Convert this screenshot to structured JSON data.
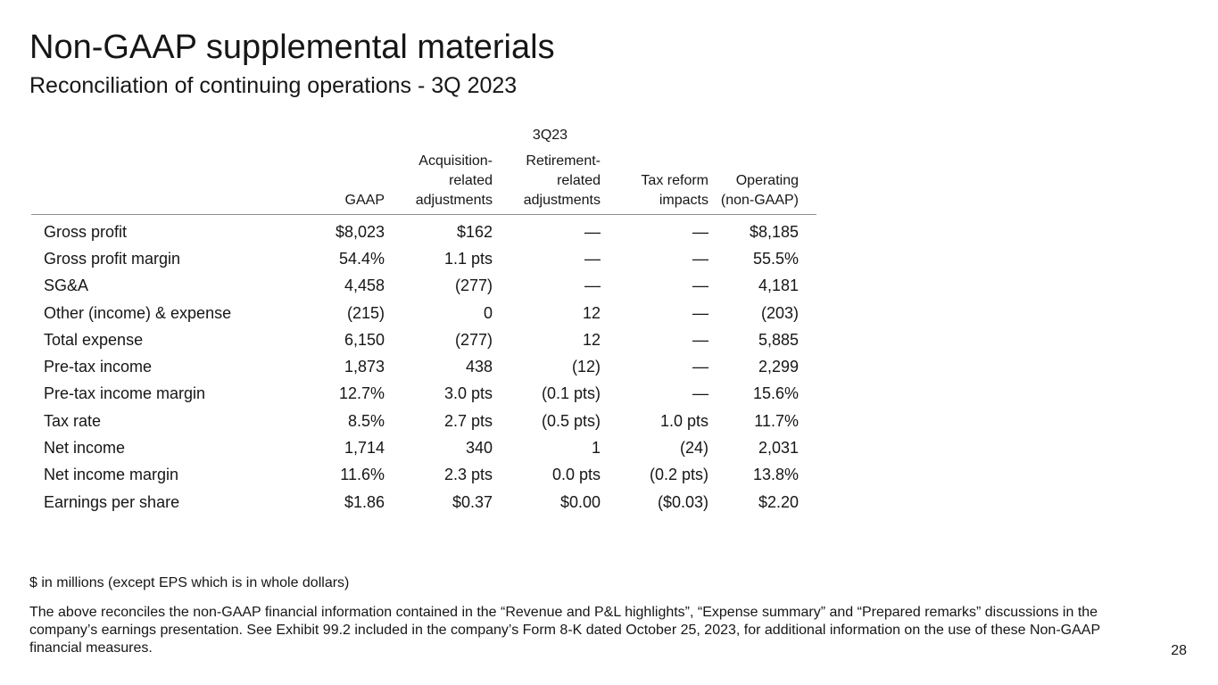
{
  "header": {
    "title": "Non-GAAP supplemental materials",
    "subtitle": "Reconciliation of continuing operations - 3Q 2023"
  },
  "table": {
    "period": "3Q23",
    "columns": [
      {
        "line1": "",
        "line2": "",
        "line3": "GAAP"
      },
      {
        "line1": "Acquisition-",
        "line2": "related",
        "line3": "adjustments"
      },
      {
        "line1": "Retirement-",
        "line2": "related",
        "line3": "adjustments"
      },
      {
        "line1": "",
        "line2": "Tax reform",
        "line3": "impacts"
      },
      {
        "line1": "",
        "line2": "Operating",
        "line3": "(non-GAAP)"
      }
    ],
    "rows": [
      {
        "label": "Gross profit",
        "values": [
          "$8,023",
          "$162",
          "—",
          "—",
          "$8,185"
        ]
      },
      {
        "label": "Gross profit margin",
        "values": [
          "54.4%",
          "1.1 pts",
          "—",
          "—",
          "55.5%"
        ]
      },
      {
        "label": "SG&A",
        "values": [
          "4,458",
          "(277)",
          "—",
          "—",
          "4,181"
        ]
      },
      {
        "label": "Other (income) & expense",
        "values": [
          "(215)",
          "0",
          "12",
          "—",
          "(203)"
        ]
      },
      {
        "label": "Total expense",
        "values": [
          "6,150",
          "(277)",
          "12",
          "—",
          "5,885"
        ]
      },
      {
        "label": "Pre-tax income",
        "values": [
          "1,873",
          "438",
          "(12)",
          "—",
          "2,299"
        ]
      },
      {
        "label": "Pre-tax income margin",
        "values": [
          "12.7%",
          "3.0 pts",
          "(0.1 pts)",
          "—",
          "15.6%"
        ]
      },
      {
        "label": "Tax rate",
        "values": [
          "8.5%",
          "2.7 pts",
          "(0.5 pts)",
          "1.0 pts",
          "11.7%"
        ]
      },
      {
        "label": "Net income",
        "values": [
          "1,714",
          "340",
          "1",
          "(24)",
          "2,031"
        ]
      },
      {
        "label": "Net income margin",
        "values": [
          "11.6%",
          "2.3 pts",
          "0.0 pts",
          "(0.2 pts)",
          "13.8%"
        ]
      },
      {
        "label": "Earnings per share",
        "values": [
          "$1.86",
          "$0.37",
          "$0.00",
          "($0.03)",
          "$2.20"
        ]
      }
    ]
  },
  "footer": {
    "units_note": "$ in millions (except EPS which is in whole dollars)",
    "disclaimer": "The above reconciles the non-GAAP financial information contained in the “Revenue and P&L highlights”, “Expense summary” and “Prepared remarks” discussions in the company’s earnings presentation. See Exhibit 99.2 included in the company’s Form 8-K dated October 25, 2023, for additional information on the use of these Non-GAAP financial measures.",
    "page_number": "28"
  }
}
